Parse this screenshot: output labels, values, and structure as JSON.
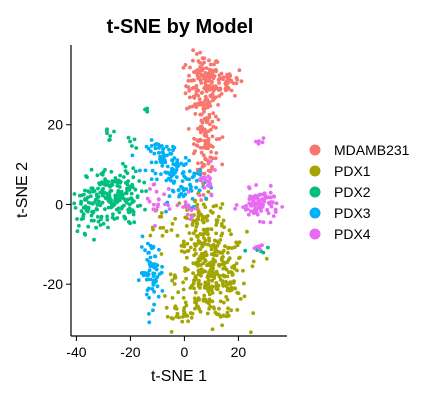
{
  "chart_data": {
    "type": "scatter",
    "title": "t-SNE by Model",
    "xlabel": "t-SNE 1",
    "ylabel": "t-SNE 2",
    "xlim": [
      -42,
      38
    ],
    "ylim": [
      -33,
      40
    ],
    "xticks": [
      -40,
      -20,
      0,
      20
    ],
    "yticks": [
      -20,
      0,
      20
    ],
    "xtick_labels": [
      "-40",
      "-20",
      "0",
      "20"
    ],
    "ytick_labels": [
      "-20",
      "0",
      "20"
    ],
    "grid": false,
    "legend_position": "right",
    "series": [
      {
        "name": "MDAMB231",
        "color": "#F8766D",
        "clusters": [
          {
            "cx": 7,
            "cy": 30,
            "sx": 3.2,
            "sy": 4,
            "n": 140
          },
          {
            "cx": 16,
            "cy": 31,
            "sx": 3,
            "sy": 1.8,
            "n": 45
          },
          {
            "cx": 8,
            "cy": 18,
            "sx": 2.2,
            "sy": 4,
            "n": 75
          },
          {
            "cx": 7,
            "cy": 9,
            "sx": 2,
            "sy": 3,
            "n": 30
          }
        ]
      },
      {
        "name": "PDX1",
        "color": "#A3A500",
        "clusters": [
          {
            "cx": 10,
            "cy": -18,
            "sx": 6.5,
            "sy": 5.5,
            "n": 320
          },
          {
            "cx": 6,
            "cy": -4,
            "sx": 5,
            "sy": 4,
            "n": 90
          },
          {
            "cx": 0,
            "cy": -27,
            "sx": 2.5,
            "sy": 1,
            "n": 20
          },
          {
            "cx": -9,
            "cy": -4,
            "sx": 2.5,
            "sy": 2,
            "n": 12
          }
        ]
      },
      {
        "name": "PDX2",
        "color": "#00BF7D",
        "clusters": [
          {
            "cx": -26,
            "cy": 2,
            "sx": 5,
            "sy": 3.5,
            "n": 170
          },
          {
            "cx": -35,
            "cy": -1,
            "sx": 3,
            "sy": 3,
            "n": 60
          },
          {
            "cx": -28,
            "cy": 18,
            "sx": 1.2,
            "sy": 1,
            "n": 7
          },
          {
            "cx": -20,
            "cy": 15,
            "sx": 1,
            "sy": 0.8,
            "n": 5
          },
          {
            "cx": -14,
            "cy": 24,
            "sx": 1,
            "sy": 1,
            "n": 4
          },
          {
            "cx": 27,
            "cy": -12,
            "sx": 1.5,
            "sy": 1,
            "n": 5
          }
        ]
      },
      {
        "name": "PDX3",
        "color": "#00B0F6",
        "clusters": [
          {
            "cx": -12,
            "cy": -17,
            "sx": 2.2,
            "sy": 4,
            "n": 70
          },
          {
            "cx": -8,
            "cy": 12,
            "sx": 3,
            "sy": 2,
            "n": 50
          },
          {
            "cx": -3,
            "cy": 7,
            "sx": 3,
            "sy": 3,
            "n": 55
          },
          {
            "cx": 3,
            "cy": 5,
            "sx": 2.5,
            "sy": 2.5,
            "n": 30
          }
        ]
      },
      {
        "name": "PDX4",
        "color": "#E76BF3",
        "clusters": [
          {
            "cx": 28,
            "cy": 0,
            "sx": 3.5,
            "sy": 1.8,
            "n": 90
          },
          {
            "cx": 28,
            "cy": 15.5,
            "sx": 0.8,
            "sy": 0.5,
            "n": 5
          },
          {
            "cx": 28,
            "cy": -11,
            "sx": 0.8,
            "sy": 0.8,
            "n": 5
          },
          {
            "cx": 8,
            "cy": 5,
            "sx": 2,
            "sy": 2,
            "n": 20
          },
          {
            "cx": -10,
            "cy": 1,
            "sx": 2.5,
            "sy": 3,
            "n": 20
          },
          {
            "cx": 1,
            "cy": -2,
            "sx": 2,
            "sy": 2,
            "n": 12
          }
        ]
      }
    ]
  }
}
